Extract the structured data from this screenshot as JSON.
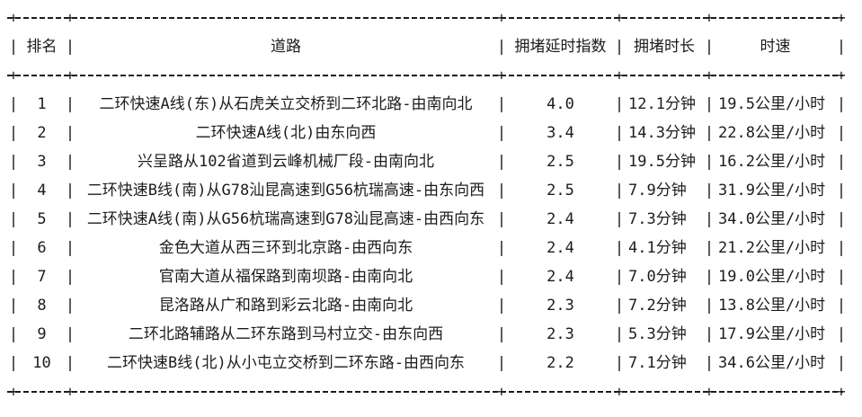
{
  "page": {
    "kind": "console-table-output",
    "background_color": "#ffffff",
    "text_color": "#1c1c1c"
  },
  "table": {
    "columns": [
      {
        "key": "rank",
        "label": "排名"
      },
      {
        "key": "road",
        "label": "道路"
      },
      {
        "key": "index",
        "label": "拥堵延时指数"
      },
      {
        "key": "duration",
        "label": "拥堵时长"
      },
      {
        "key": "speed",
        "label": "时速"
      }
    ],
    "rows": [
      {
        "rank": "1",
        "road": "二环快速A线(东)从石虎关立交桥到二环北路-由南向北",
        "index": "4.0",
        "duration": "12.1分钟",
        "speed": "19.5公里/小时"
      },
      {
        "rank": "2",
        "road": "二环快速A线(北)由东向西",
        "index": "3.4",
        "duration": "14.3分钟",
        "speed": "22.8公里/小时"
      },
      {
        "rank": "3",
        "road": "兴呈路从102省道到云峰机械厂段-由南向北",
        "index": "2.5",
        "duration": "19.5分钟",
        "speed": "16.2公里/小时"
      },
      {
        "rank": "4",
        "road": "二环快速B线(南)从G78汕昆高速到G56杭瑞高速-由东向西",
        "index": "2.5",
        "duration": "7.9分钟",
        "speed": "31.9公里/小时"
      },
      {
        "rank": "5",
        "road": "二环快速A线(南)从G56杭瑞高速到G78汕昆高速-由西向东",
        "index": "2.4",
        "duration": "7.3分钟",
        "speed": "34.0公里/小时"
      },
      {
        "rank": "6",
        "road": "金色大道从西三环到北京路-由西向东",
        "index": "2.4",
        "duration": "4.1分钟",
        "speed": "21.2公里/小时"
      },
      {
        "rank": "7",
        "road": "官南大道从福保路到南坝路-由南向北",
        "index": "2.4",
        "duration": "7.0分钟",
        "speed": "19.0公里/小时"
      },
      {
        "rank": "8",
        "road": "昆洛路从广和路到彩云北路-由南向北",
        "index": "2.3",
        "duration": "7.2分钟",
        "speed": "13.8公里/小时"
      },
      {
        "rank": "9",
        "road": "二环北路辅路从二环东路到马村立交-由东向西",
        "index": "2.3",
        "duration": "5.3分钟",
        "speed": "17.9公里/小时"
      },
      {
        "rank": "10",
        "road": "二环快速B线(北)从小屯立交桥到二环东路-由西向东",
        "index": "2.2",
        "duration": "7.1分钟",
        "speed": "34.6公里/小时"
      }
    ]
  },
  "glyphs": {
    "vertical_separator": "|",
    "junction": "+"
  }
}
